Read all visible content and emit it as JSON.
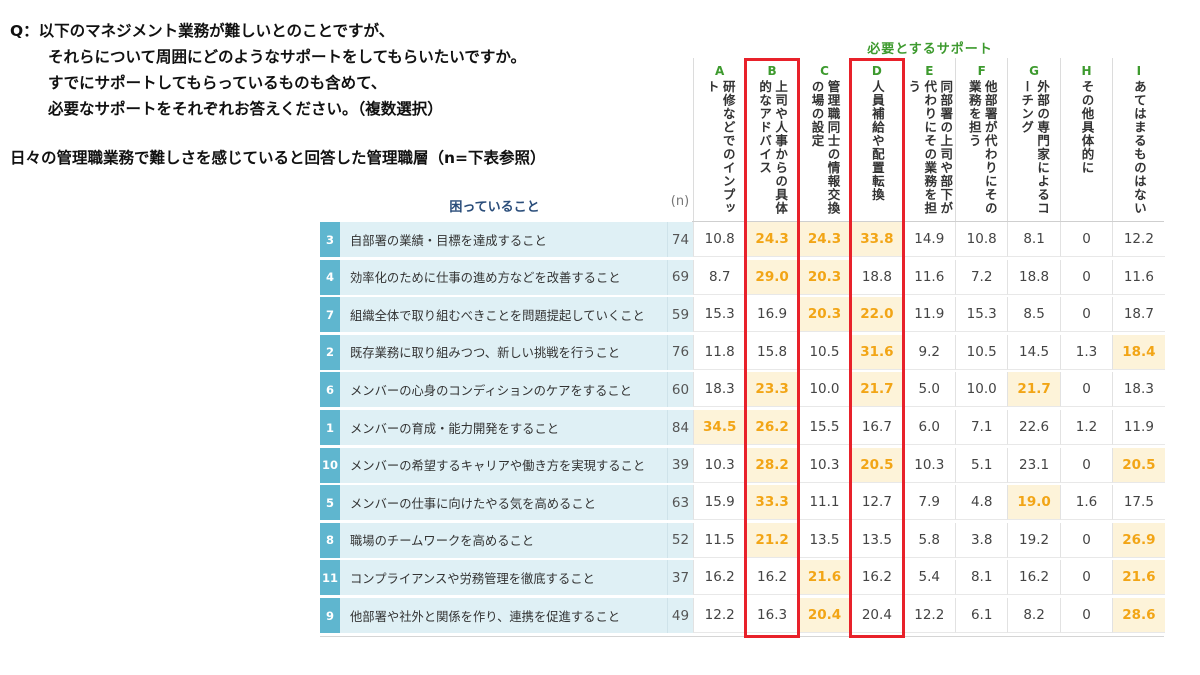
{
  "question_lines": [
    "Q：以下のマネジメント業務が難しいとのことですが、",
    "それらについて周囲にどのようなサポートをしてもらいたいですか。",
    "すでにサポートしてもらっているものも含めて、",
    "必要なサポートをそれぞれお答えください。（複数選択）"
  ],
  "subtitle": "日々の管理職業務で難しさを感じていると回答した管理職層（n=下表参照）",
  "table": {
    "support_header": "必要とするサポート",
    "row_header": "困っていること",
    "n_header": "(n)",
    "columns": [
      {
        "letter": "A",
        "label": "研修などでのインプット"
      },
      {
        "letter": "B",
        "label": "上司や人事からの具体的なアドバイス"
      },
      {
        "letter": "C",
        "label": "管理職同士の情報交換の場の設定"
      },
      {
        "letter": "D",
        "label": "人員補給や配置転換"
      },
      {
        "letter": "E",
        "label": "同部署の上司や部下が代わりにその業務を担う"
      },
      {
        "letter": "F",
        "label": "他部署が代わりにその業務を担う"
      },
      {
        "letter": "G",
        "label": "外部の専門家によるコーチング"
      },
      {
        "letter": "H",
        "label": "その他具体的に"
      },
      {
        "letter": "I",
        "label": "あてはまるものはない"
      }
    ],
    "highlight_columns": [
      "B",
      "D"
    ],
    "rows": [
      {
        "no": "3",
        "label": "自部署の業績・目標を達成すること",
        "n": "74",
        "values": [
          "10.8",
          "24.3",
          "24.3",
          "33.8",
          "14.9",
          "10.8",
          "8.1",
          "0",
          "12.2"
        ],
        "highlighted": [
          1,
          2,
          3
        ]
      },
      {
        "no": "4",
        "label": "効率化のために仕事の進め方などを改善すること",
        "n": "69",
        "values": [
          "8.7",
          "29.0",
          "20.3",
          "18.8",
          "11.6",
          "7.2",
          "18.8",
          "0",
          "11.6"
        ],
        "highlighted": [
          1,
          2
        ]
      },
      {
        "no": "7",
        "label": "組織全体で取り組むべきことを問題提起していくこと",
        "n": "59",
        "values": [
          "15.3",
          "16.9",
          "20.3",
          "22.0",
          "11.9",
          "15.3",
          "8.5",
          "0",
          "18.7"
        ],
        "highlighted": [
          2,
          3
        ]
      },
      {
        "no": "2",
        "label": "既存業務に取り組みつつ、新しい挑戦を行うこと",
        "n": "76",
        "values": [
          "11.8",
          "15.8",
          "10.5",
          "31.6",
          "9.2",
          "10.5",
          "14.5",
          "1.3",
          "18.4"
        ],
        "highlighted": [
          3,
          8
        ]
      },
      {
        "no": "6",
        "label": "メンバーの心身のコンディションのケアをすること",
        "n": "60",
        "values": [
          "18.3",
          "23.3",
          "10.0",
          "21.7",
          "5.0",
          "10.0",
          "21.7",
          "0",
          "18.3"
        ],
        "highlighted": [
          1,
          3,
          6
        ]
      },
      {
        "no": "1",
        "label": "メンバーの育成・能力開発をすること",
        "n": "84",
        "values": [
          "34.5",
          "26.2",
          "15.5",
          "16.7",
          "6.0",
          "7.1",
          "22.6",
          "1.2",
          "11.9"
        ],
        "highlighted": [
          0,
          1
        ]
      },
      {
        "no": "10",
        "label": "メンバーの希望するキャリアや働き方を実現すること",
        "n": "39",
        "values": [
          "10.3",
          "28.2",
          "10.3",
          "20.5",
          "10.3",
          "5.1",
          "23.1",
          "0",
          "20.5"
        ],
        "highlighted": [
          1,
          3,
          8
        ]
      },
      {
        "no": "5",
        "label": "メンバーの仕事に向けたやる気を高めること",
        "n": "63",
        "values": [
          "15.9",
          "33.3",
          "11.1",
          "12.7",
          "7.9",
          "4.8",
          "19.0",
          "1.6",
          "17.5"
        ],
        "highlighted": [
          1,
          6
        ]
      },
      {
        "no": "8",
        "label": "職場のチームワークを高めること",
        "n": "52",
        "values": [
          "11.5",
          "21.2",
          "13.5",
          "13.5",
          "5.8",
          "3.8",
          "19.2",
          "0",
          "26.9"
        ],
        "highlighted": [
          1,
          8
        ]
      },
      {
        "no": "11",
        "label": "コンプライアンスや労務管理を徹底すること",
        "n": "37",
        "values": [
          "16.2",
          "16.2",
          "21.6",
          "16.2",
          "5.4",
          "8.1",
          "16.2",
          "0",
          "21.6"
        ],
        "highlighted": [
          2,
          8
        ]
      },
      {
        "no": "9",
        "label": "他部署や社外と関係を作り、連携を促進すること",
        "n": "49",
        "values": [
          "12.2",
          "16.3",
          "20.4",
          "20.4",
          "12.2",
          "6.1",
          "8.2",
          "0",
          "28.6"
        ],
        "highlighted": [
          2,
          8
        ]
      }
    ]
  }
}
